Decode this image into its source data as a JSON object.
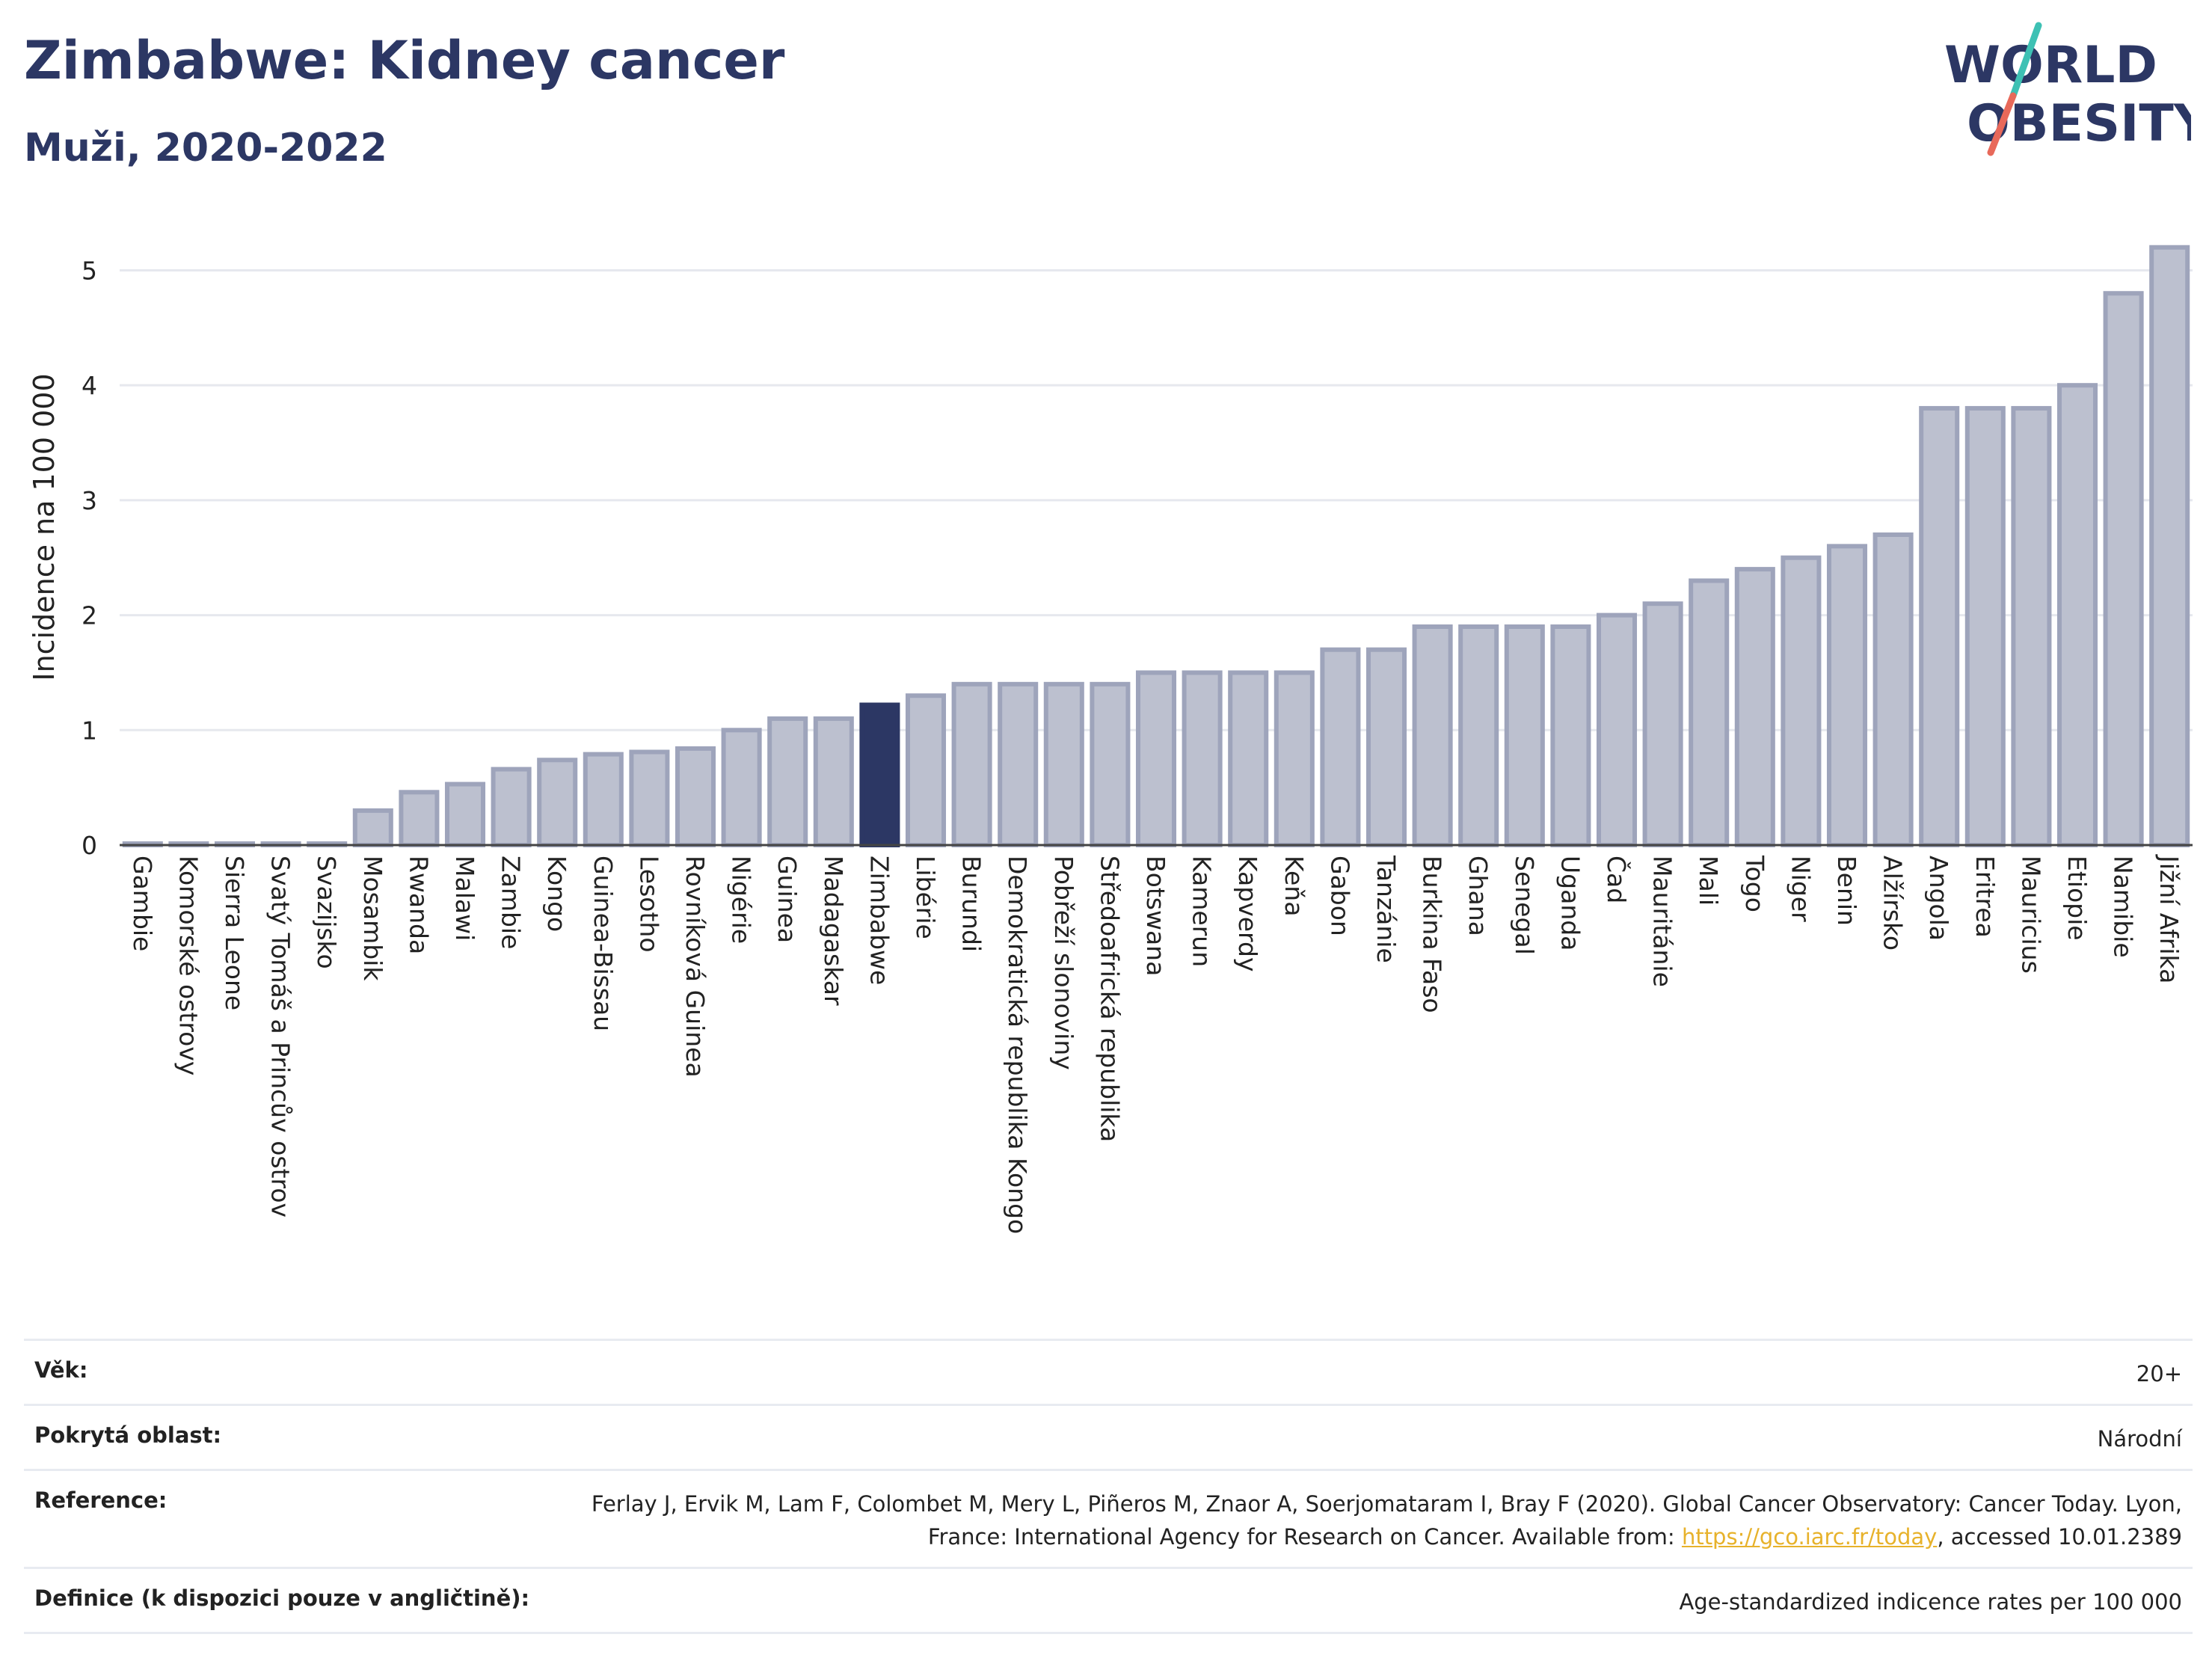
{
  "header": {
    "title": "Zimbabwe: Kidney cancer",
    "subtitle": "Muži, 2020-2022"
  },
  "logo": {
    "line1": "WORLD",
    "line2": "OBESITY",
    "accent_colors": [
      "#3ec1b4",
      "#e8695a"
    ]
  },
  "colors": {
    "highlight": "#2c3764",
    "bar": "#bcc0cf",
    "bar_stroke": "#9ea4bb",
    "title": "#2c3764",
    "link": "#e7b22b"
  },
  "chart_data": {
    "type": "bar",
    "title": "Zimbabwe: Kidney cancer",
    "subtitle": "Muži, 2020-2022",
    "xlabel": "",
    "ylabel": "Incidence na 100 000",
    "ylim": [
      0,
      5.4
    ],
    "yticks": [
      0,
      1,
      2,
      3,
      4,
      5
    ],
    "grid": true,
    "highlighted_category": "Zimbabwe",
    "categories": [
      "Gambie",
      "Komorské ostrovy",
      "Sierra Leone",
      "Svatý Tomáš a Princův ostrov",
      "Svazijsko",
      "Mosambik",
      "Rwanda",
      "Malawi",
      "Zambie",
      "Kongo",
      "Guinea-Bissau",
      "Lesotho",
      "Rovníková Guinea",
      "Nigérie",
      "Guinea",
      "Madagaskar",
      "Zimbabwe",
      "Libérie",
      "Burundi",
      "Demokratická republika Kongo",
      "Pobřeží slonoviny",
      "Středoafrická republika",
      "Botswana",
      "Kamerun",
      "Kapverdy",
      "Keňa",
      "Gabon",
      "Tanzánie",
      "Burkina Faso",
      "Ghana",
      "Senegal",
      "Uganda",
      "Čad",
      "Mauritánie",
      "Mali",
      "Togo",
      "Niger",
      "Benin",
      "Alžírsko",
      "Angola",
      "Eritrea",
      "Mauricius",
      "Etiopie",
      "Namibie",
      "Jižní Afrika"
    ],
    "values": [
      0.01,
      0.01,
      0.01,
      0.01,
      0.01,
      0.3,
      0.46,
      0.53,
      0.66,
      0.74,
      0.79,
      0.81,
      0.84,
      1.0,
      1.1,
      1.1,
      1.22,
      1.3,
      1.4,
      1.4,
      1.4,
      1.4,
      1.5,
      1.5,
      1.5,
      1.5,
      1.7,
      1.7,
      1.9,
      1.9,
      1.9,
      1.9,
      2.0,
      2.1,
      2.3,
      2.4,
      2.5,
      2.6,
      2.7,
      3.8,
      3.8,
      3.8,
      4.0,
      4.8,
      5.2
    ]
  },
  "meta": {
    "age_label": "Věk:",
    "age_value": "20+",
    "coverage_label": "Pokrytá oblast:",
    "coverage_value": "Národní",
    "reference_label": "Reference:",
    "reference_text_1": "Ferlay J, Ervik M, Lam F, Colombet M, Mery L, Piñeros M, Znaor A, Soerjomataram I, Bray F (2020). Global Cancer Observatory: Cancer Today. Lyon, France: International Agency for Research on Cancer. Available from: ",
    "reference_link": "https://gco.iarc.fr/today",
    "reference_text_2": ", accessed 10.01.2389",
    "definition_label": "Definice (k dispozici pouze v angličtině):",
    "definition_value": "Age-standardized indicence rates per 100 000"
  }
}
